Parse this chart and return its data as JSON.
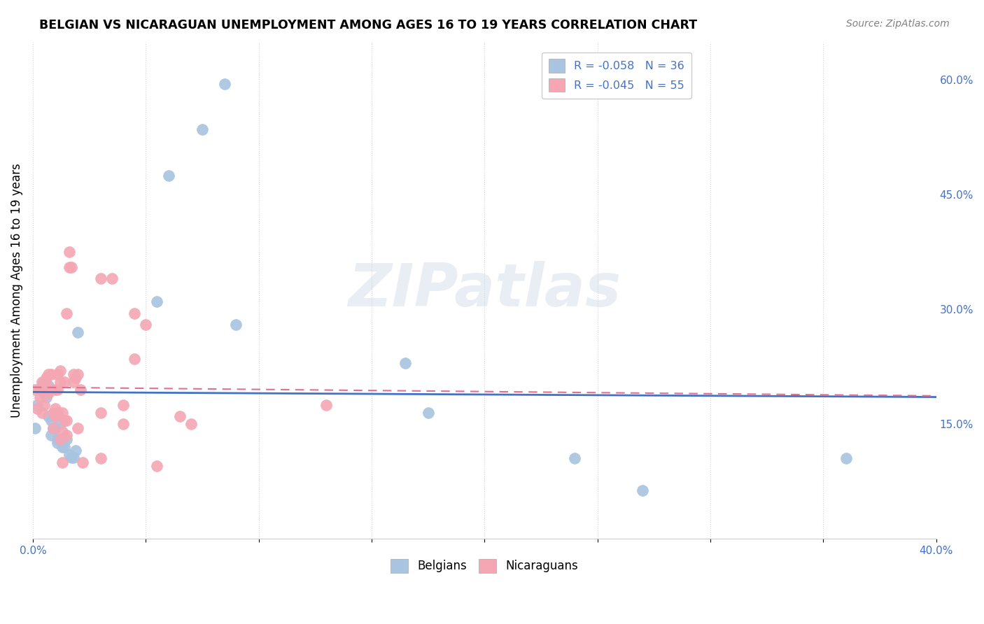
{
  "title": "BELGIAN VS NICARAGUAN UNEMPLOYMENT AMONG AGES 16 TO 19 YEARS CORRELATION CHART",
  "source": "Source: ZipAtlas.com",
  "ylabel": "Unemployment Among Ages 16 to 19 years",
  "xlim": [
    0.0,
    0.4
  ],
  "ylim": [
    0.0,
    0.65
  ],
  "xticks": [
    0.0,
    0.05,
    0.1,
    0.15,
    0.2,
    0.25,
    0.3,
    0.35,
    0.4
  ],
  "yticks_right": [
    0.15,
    0.3,
    0.45,
    0.6
  ],
  "ytick_labels_right": [
    "15.0%",
    "30.0%",
    "45.0%",
    "60.0%"
  ],
  "xtick_labels": [
    "0.0%",
    "",
    "",
    "",
    "",
    "",
    "",
    "",
    "40.0%"
  ],
  "belgian_color": "#a8c4e0",
  "nicaraguan_color": "#f4a7b3",
  "trend_belgian_color": "#4472c4",
  "trend_nicaraguan_color": "#e07090",
  "legend_R_belgian": "R = -0.058",
  "legend_N_belgian": "N = 36",
  "legend_R_nicaraguan": "R = -0.045",
  "legend_N_nicaraguan": "N = 55",
  "belgian_x": [
    0.001,
    0.002,
    0.003,
    0.004,
    0.005,
    0.006,
    0.006,
    0.007,
    0.007,
    0.008,
    0.008,
    0.009,
    0.01,
    0.01,
    0.011,
    0.011,
    0.012,
    0.013,
    0.013,
    0.014,
    0.015,
    0.016,
    0.017,
    0.018,
    0.019,
    0.02,
    0.055,
    0.06,
    0.075,
    0.085,
    0.09,
    0.165,
    0.175,
    0.24,
    0.27,
    0.36
  ],
  "belgian_y": [
    0.145,
    0.175,
    0.195,
    0.2,
    0.205,
    0.185,
    0.195,
    0.2,
    0.16,
    0.135,
    0.155,
    0.145,
    0.145,
    0.16,
    0.125,
    0.13,
    0.15,
    0.13,
    0.12,
    0.12,
    0.13,
    0.11,
    0.106,
    0.106,
    0.115,
    0.27,
    0.31,
    0.475,
    0.535,
    0.595,
    0.28,
    0.23,
    0.165,
    0.105,
    0.063,
    0.105
  ],
  "nicaraguan_x": [
    0.001,
    0.002,
    0.003,
    0.004,
    0.004,
    0.005,
    0.005,
    0.006,
    0.006,
    0.007,
    0.007,
    0.008,
    0.008,
    0.009,
    0.009,
    0.01,
    0.01,
    0.01,
    0.011,
    0.011,
    0.011,
    0.012,
    0.012,
    0.012,
    0.013,
    0.013,
    0.013,
    0.014,
    0.014,
    0.015,
    0.015,
    0.015,
    0.016,
    0.016,
    0.017,
    0.018,
    0.018,
    0.019,
    0.02,
    0.02,
    0.021,
    0.022,
    0.03,
    0.03,
    0.03,
    0.035,
    0.04,
    0.04,
    0.045,
    0.045,
    0.05,
    0.055,
    0.065,
    0.07,
    0.13
  ],
  "nicaraguan_y": [
    0.195,
    0.17,
    0.185,
    0.205,
    0.165,
    0.175,
    0.19,
    0.2,
    0.21,
    0.19,
    0.215,
    0.215,
    0.195,
    0.165,
    0.145,
    0.16,
    0.17,
    0.195,
    0.165,
    0.195,
    0.215,
    0.22,
    0.205,
    0.13,
    0.1,
    0.14,
    0.165,
    0.155,
    0.205,
    0.155,
    0.135,
    0.295,
    0.375,
    0.355,
    0.355,
    0.205,
    0.215,
    0.21,
    0.145,
    0.215,
    0.195,
    0.1,
    0.105,
    0.165,
    0.34,
    0.34,
    0.175,
    0.15,
    0.295,
    0.235,
    0.28,
    0.095,
    0.16,
    0.15,
    0.175
  ]
}
